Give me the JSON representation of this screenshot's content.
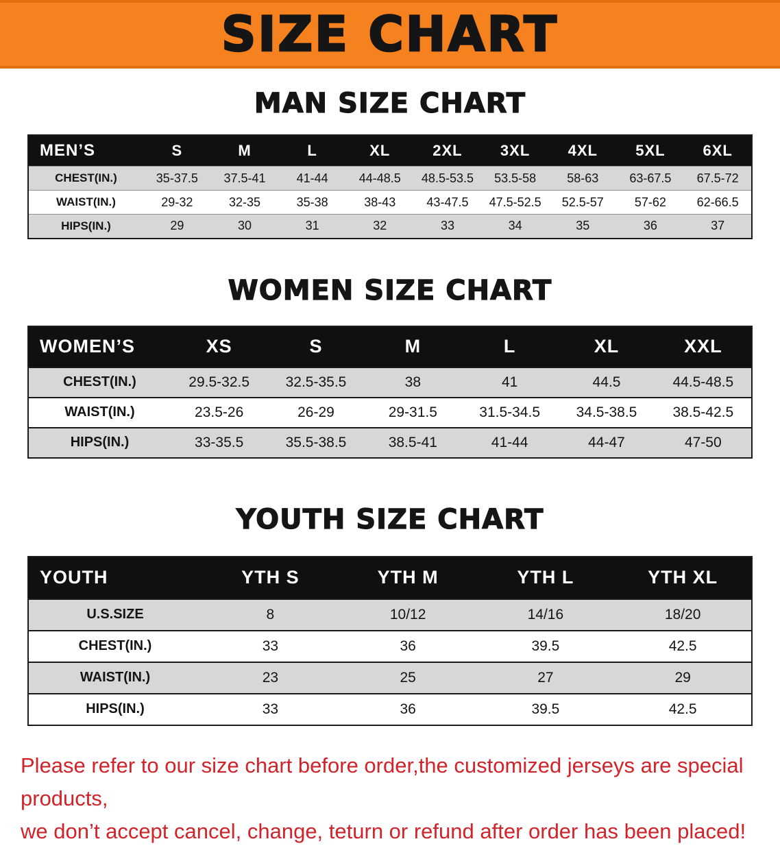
{
  "banner": {
    "title": "SIZE CHART",
    "background_color": "#F6821F",
    "text_color": "#151515"
  },
  "colors": {
    "table_header_bg": "#101010",
    "table_header_text": "#FFFFFF",
    "row_stripe_gray": "#D7D7D7",
    "note_red": "#D2232A"
  },
  "sections": [
    {
      "key": "men",
      "heading": "MAN SIZE CHART",
      "table": {
        "header": [
          "MEN’S",
          "S",
          "M",
          "L",
          "XL",
          "2XL",
          "3XL",
          "4XL",
          "5XL",
          "6XL"
        ],
        "rows": [
          [
            "CHEST(IN.)",
            "35-37.5",
            "37.5-41",
            "41-44",
            "44-48.5",
            "48.5-53.5",
            "53.5-58",
            "58-63",
            "63-67.5",
            "67.5-72"
          ],
          [
            "WAIST(IN.)",
            "29-32",
            "32-35",
            "35-38",
            "38-43",
            "43-47.5",
            "47.5-52.5",
            "52.5-57",
            "57-62",
            "62-66.5"
          ],
          [
            "HIPS(IN.)",
            "29",
            "30",
            "31",
            "32",
            "33",
            "34",
            "35",
            "36",
            "37"
          ]
        ]
      }
    },
    {
      "key": "women",
      "heading": "WOMEN SIZE CHART",
      "table": {
        "header": [
          "WOMEN’S",
          "XS",
          "S",
          "M",
          "L",
          "XL",
          "XXL"
        ],
        "rows": [
          [
            "CHEST(IN.)",
            "29.5-32.5",
            "32.5-35.5",
            "38",
            "41",
            "44.5",
            "44.5-48.5"
          ],
          [
            "WAIST(IN.)",
            "23.5-26",
            "26-29",
            "29-31.5",
            "31.5-34.5",
            "34.5-38.5",
            "38.5-42.5"
          ],
          [
            "HIPS(IN.)",
            "33-35.5",
            "35.5-38.5",
            "38.5-41",
            "41-44",
            "44-47",
            "47-50"
          ]
        ]
      }
    },
    {
      "key": "youth",
      "heading": "YOUTH SIZE CHART",
      "table": {
        "header": [
          "YOUTH",
          "YTH S",
          "YTH M",
          "YTH L",
          "YTH XL"
        ],
        "rows": [
          [
            "U.S.SIZE",
            "8",
            "10/12",
            "14/16",
            "18/20"
          ],
          [
            "CHEST(IN.)",
            "33",
            "36",
            "39.5",
            "42.5"
          ],
          [
            "WAIST(IN.)",
            "23",
            "25",
            "27",
            "29"
          ],
          [
            "HIPS(IN.)",
            "33",
            "36",
            "39.5",
            "42.5"
          ]
        ]
      }
    }
  ],
  "footer": {
    "line1": "Please refer to our size chart before order,the customized jerseys are special products,",
    "line2": "we don’t accept cancel, change, teturn or refund after order has been placed!"
  }
}
